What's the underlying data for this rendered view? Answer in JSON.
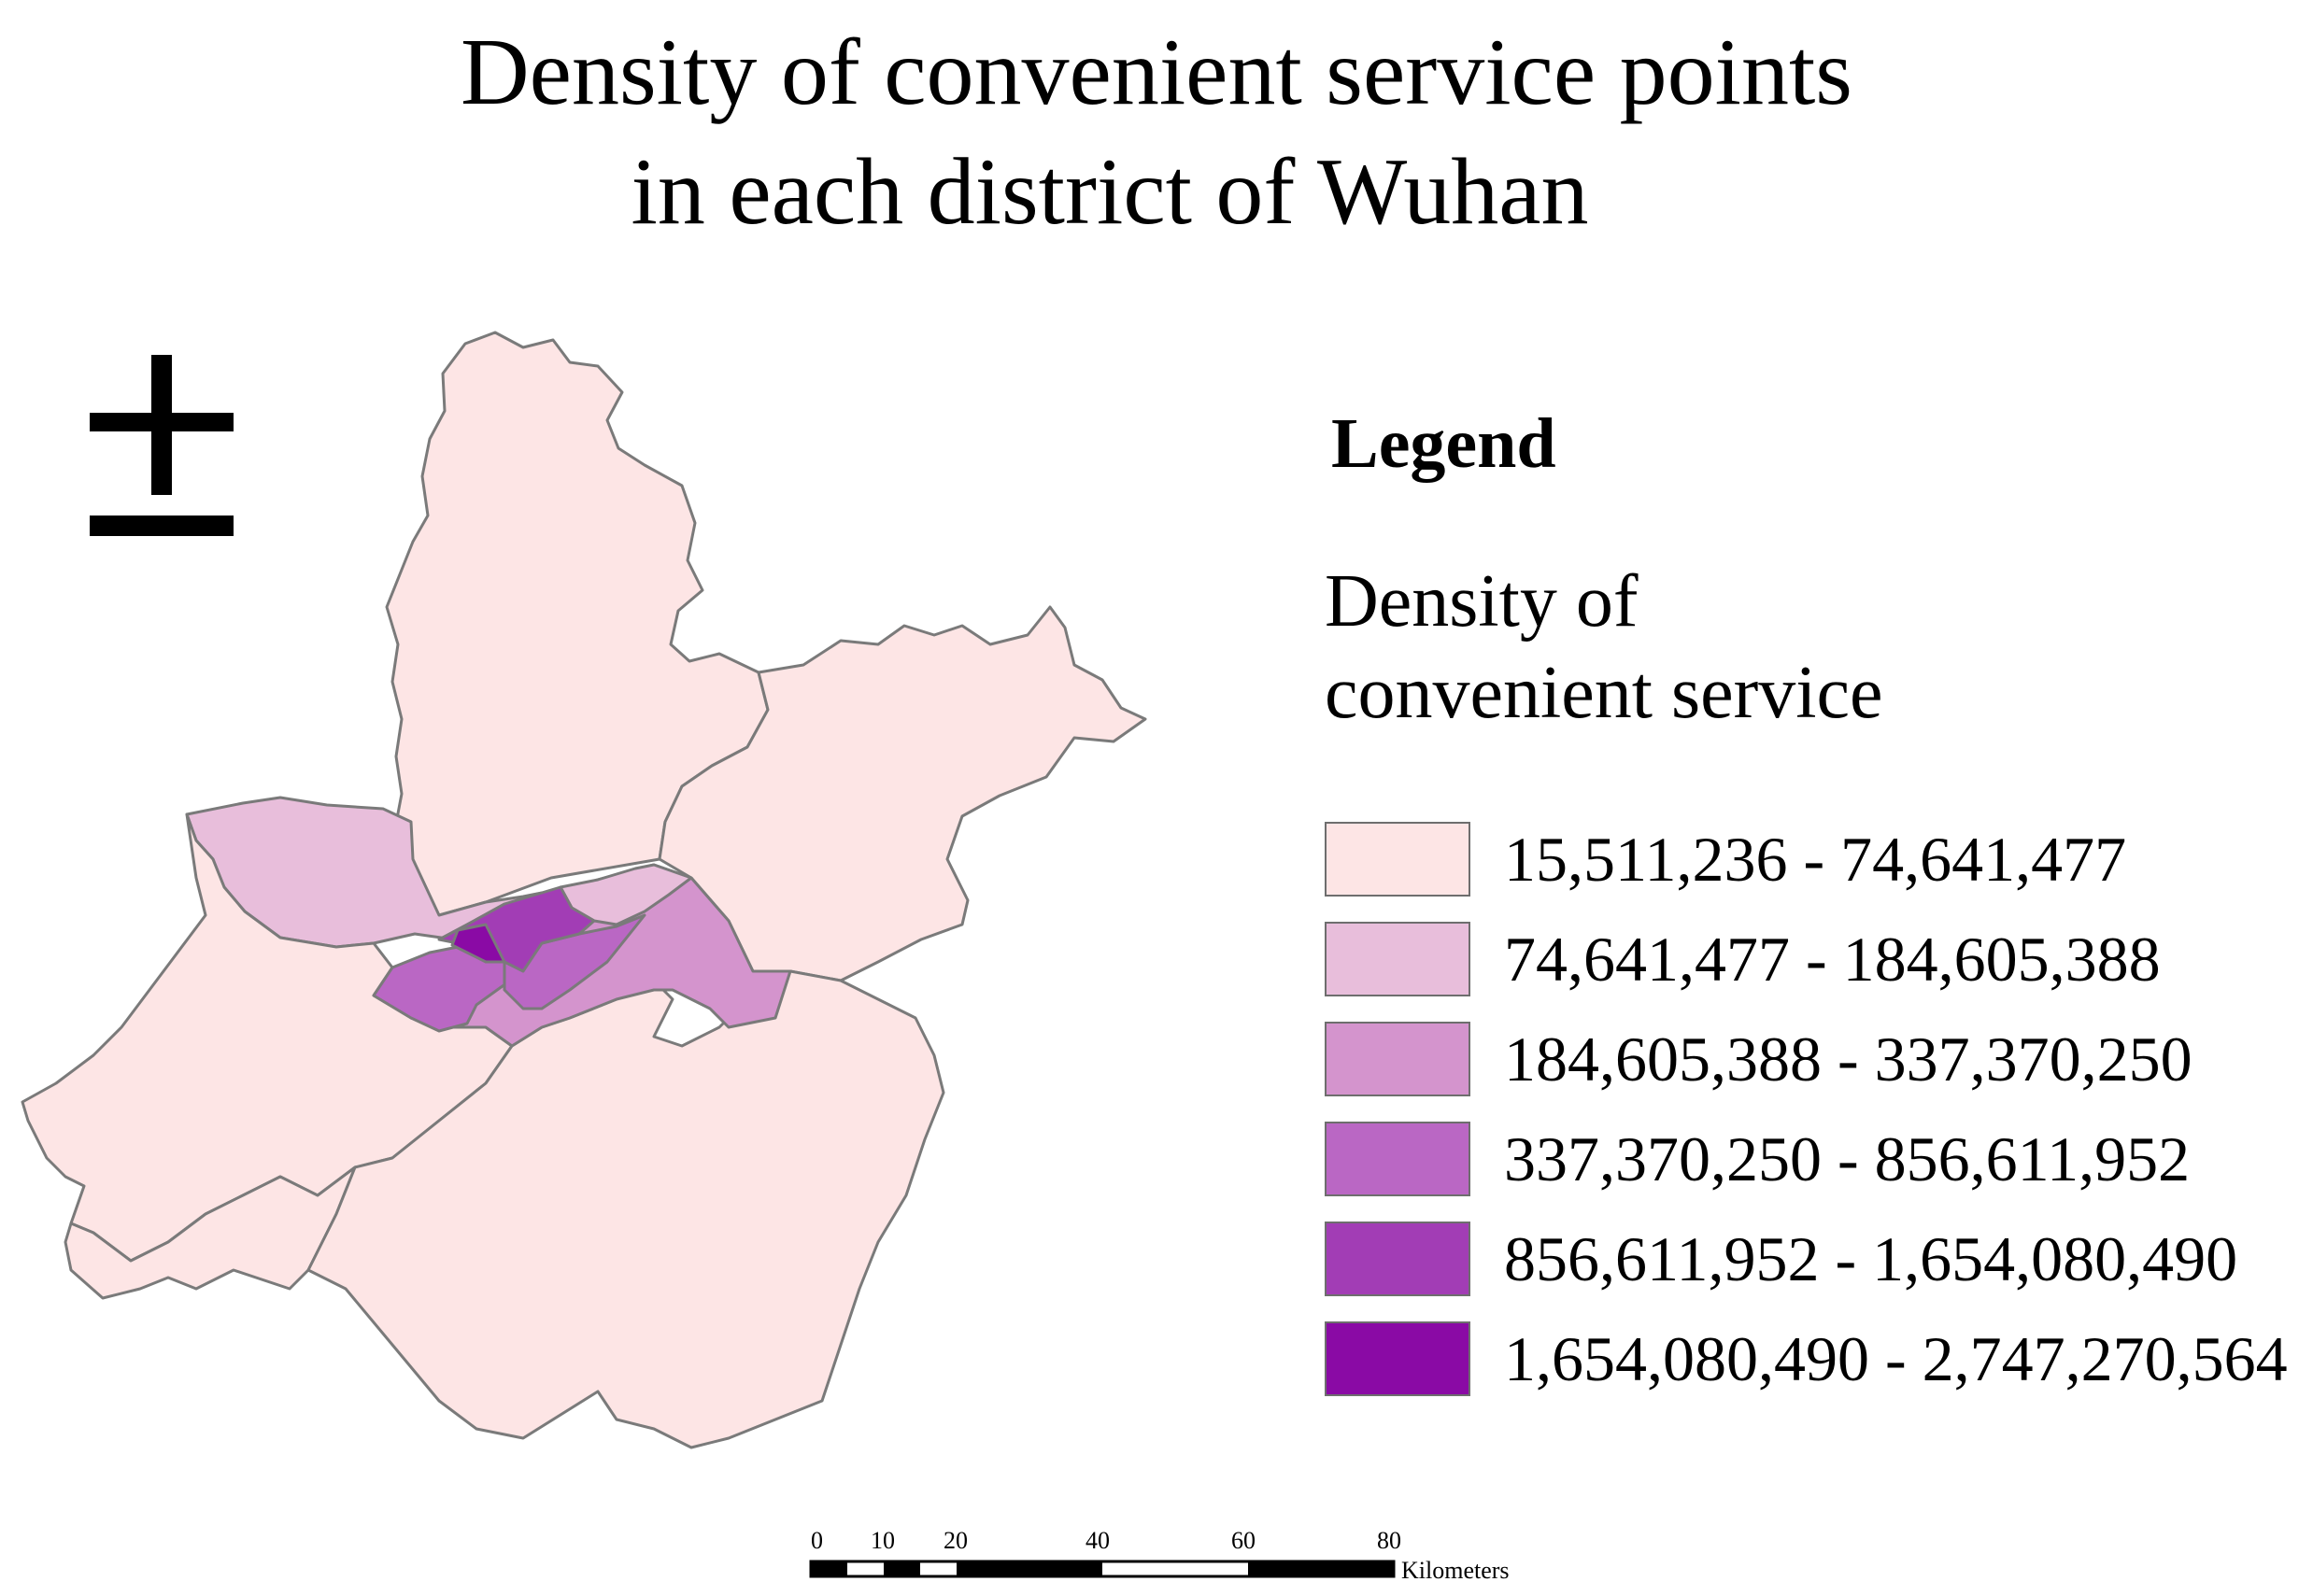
{
  "title": {
    "line1": "Density of convenient service points",
    "line2": "in each district of Wuhan"
  },
  "north_arrow": {
    "icon": "north-arrow-icon",
    "glyph": "±"
  },
  "legend": {
    "heading": "Legend",
    "field_line1": "Density of",
    "field_line2": "convenient service",
    "classes": [
      {
        "label": "15,511,236 - 74,641,477",
        "color": "#fde5e5"
      },
      {
        "label": "74,641,477 - 184,605,388",
        "color": "#e8bedb"
      },
      {
        "label": "184,605,388 - 337,370,250",
        "color": "#d494cd"
      },
      {
        "label": "337,370,250 - 856,611,952",
        "color": "#ba67c4"
      },
      {
        "label": "856,611,952 - 1,654,080,490",
        "color": "#a23db5"
      },
      {
        "label": "1,654,080,490 - 2,747,270,564",
        "color": "#8a0aa5"
      }
    ]
  },
  "scale_bar": {
    "ticks": [
      "0",
      "10",
      "20",
      "40",
      "60",
      "80"
    ],
    "unit": "Kilometers"
  }
}
